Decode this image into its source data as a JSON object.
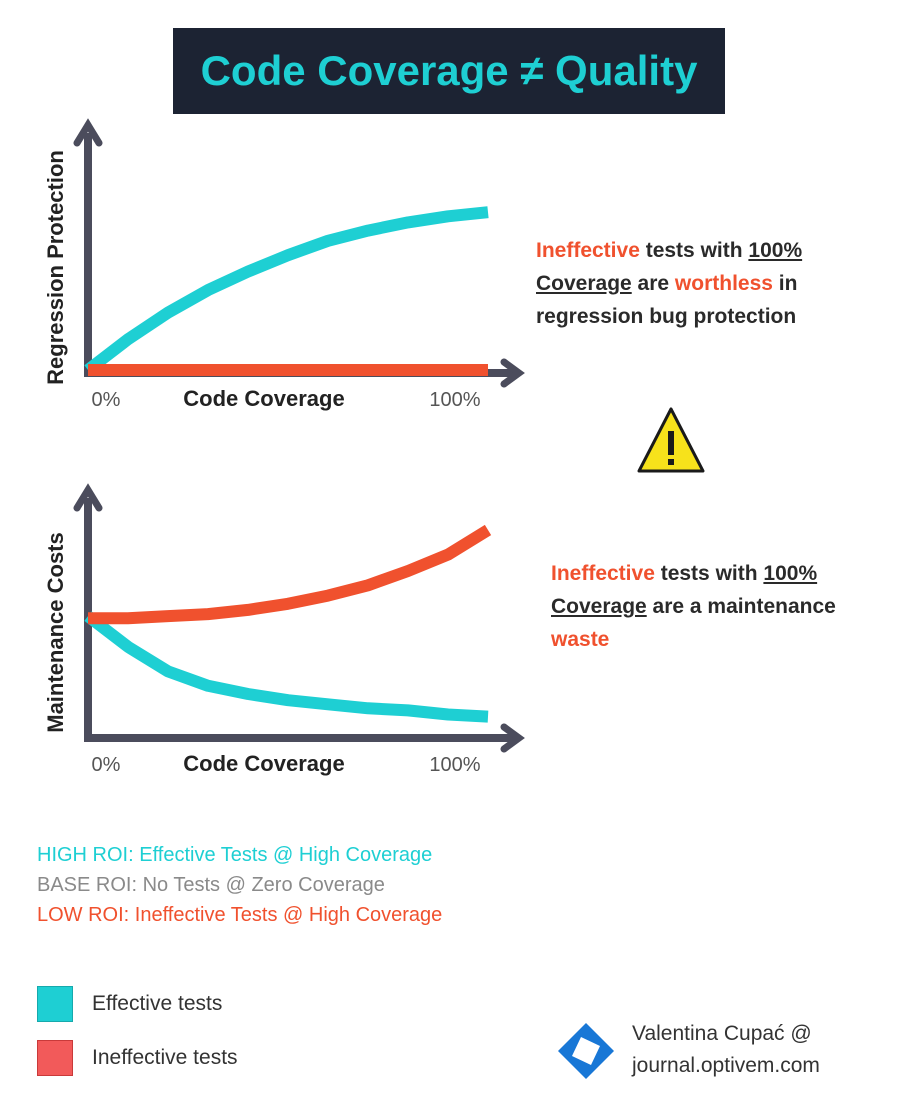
{
  "title": "Code Coverage ≠ Quality",
  "colors": {
    "effective": "#1ecfd3",
    "ineffective": "#f0512e",
    "axis": "#4b4c5c",
    "title_bg": "#1c2333"
  },
  "chart_data": [
    {
      "type": "line",
      "title": "",
      "xlabel": "Code Coverage",
      "ylabel": "Regression Protection",
      "x_tick_labels": [
        "0%",
        "100%"
      ],
      "xlim": [
        0,
        100
      ],
      "ylim": [
        0,
        100
      ],
      "series": [
        {
          "name": "Effective tests",
          "color": "#1ecfd3",
          "x": [
            0,
            10,
            20,
            30,
            40,
            50,
            60,
            70,
            80,
            90,
            100
          ],
          "y": [
            0,
            15,
            28,
            39,
            48,
            56,
            63,
            68,
            72,
            75,
            77
          ]
        },
        {
          "name": "Ineffective tests",
          "color": "#f0512e",
          "x": [
            0,
            100
          ],
          "y": [
            0,
            0
          ]
        }
      ]
    },
    {
      "type": "line",
      "title": "",
      "xlabel": "Code Coverage",
      "ylabel": "Maintenance Costs",
      "x_tick_labels": [
        "0%",
        "100%"
      ],
      "xlim": [
        0,
        100
      ],
      "ylim": [
        0,
        100
      ],
      "series": [
        {
          "name": "Effective tests",
          "color": "#1ecfd3",
          "x": [
            0,
            10,
            20,
            30,
            40,
            50,
            60,
            70,
            80,
            90,
            100
          ],
          "y": [
            58,
            43,
            31,
            24,
            20,
            17,
            15,
            13,
            12,
            10,
            9
          ]
        },
        {
          "name": "Ineffective tests",
          "color": "#f0512e",
          "x": [
            0,
            10,
            20,
            30,
            40,
            50,
            60,
            70,
            80,
            90,
            100
          ],
          "y": [
            57,
            57,
            58,
            59,
            61,
            64,
            68,
            73,
            80,
            88,
            100
          ]
        }
      ]
    }
  ],
  "annotations": {
    "top": {
      "p1": "Ineffective",
      "p2": " tests with ",
      "p3": "100% Coverage",
      "p4": " are ",
      "p5": "worthless",
      "p6": " in regression bug protection"
    },
    "bottom": {
      "p1": "Ineffective",
      "p2": " tests with ",
      "p3": "100% Coverage",
      "p4": " are a maintenance ",
      "p5": "waste"
    }
  },
  "warning_icon": "warning-triangle-icon",
  "roi": {
    "high": "HIGH ROI: Effective Tests @ High Coverage",
    "base": "BASE ROI: No Tests @ Zero Coverage",
    "low": "LOW ROI: Ineffective Tests @ High Coverage"
  },
  "legend": {
    "effective": "Effective tests",
    "ineffective": "Ineffective tests"
  },
  "credit": {
    "line1": "Valentina Cupać @",
    "line2": "journal.optivem.com"
  }
}
